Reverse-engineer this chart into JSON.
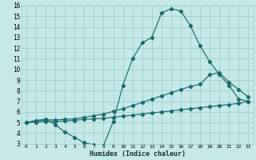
{
  "title": "",
  "xlabel": "Humidex (Indice chaleur)",
  "bg_color": "#c5e8e8",
  "grid_color": "#9fcfcf",
  "line_color": "#1a6b6b",
  "xlim": [
    -0.5,
    23.5
  ],
  "ylim": [
    3,
    16
  ],
  "xticks": [
    0,
    1,
    2,
    3,
    4,
    5,
    6,
    7,
    8,
    9,
    10,
    11,
    12,
    13,
    14,
    15,
    16,
    17,
    18,
    19,
    20,
    21,
    22,
    23
  ],
  "yticks": [
    3,
    4,
    5,
    6,
    7,
    8,
    9,
    10,
    11,
    12,
    13,
    14,
    15,
    16
  ],
  "line1_x": [
    0,
    1,
    2,
    3,
    4,
    5,
    6,
    7,
    8,
    9,
    10,
    11,
    12,
    13,
    14,
    15,
    16,
    17,
    18,
    19,
    20,
    21,
    22,
    23
  ],
  "line1_y": [
    5.0,
    5.2,
    5.3,
    4.8,
    4.1,
    3.6,
    3.1,
    2.9,
    2.85,
    5.1,
    8.5,
    11.0,
    12.5,
    13.0,
    15.3,
    15.7,
    15.5,
    14.1,
    12.2,
    10.7,
    9.5,
    8.5,
    7.2,
    7.0
  ],
  "line2_x": [
    0,
    1,
    2,
    3,
    4,
    5,
    6,
    7,
    8,
    9,
    10,
    11,
    12,
    13,
    14,
    15,
    16,
    17,
    18,
    19,
    20,
    21,
    22,
    23
  ],
  "line2_y": [
    5.0,
    5.15,
    5.25,
    5.25,
    5.3,
    5.35,
    5.5,
    5.65,
    5.8,
    6.05,
    6.3,
    6.6,
    6.9,
    7.2,
    7.5,
    7.8,
    8.1,
    8.4,
    8.6,
    9.5,
    9.7,
    8.8,
    8.1,
    7.4
  ],
  "line3_x": [
    0,
    1,
    2,
    3,
    4,
    5,
    6,
    7,
    8,
    9,
    10,
    11,
    12,
    13,
    14,
    15,
    16,
    17,
    18,
    19,
    20,
    21,
    22,
    23
  ],
  "line3_y": [
    5.0,
    5.05,
    5.1,
    5.1,
    5.15,
    5.2,
    5.3,
    5.35,
    5.4,
    5.5,
    5.6,
    5.7,
    5.8,
    5.9,
    6.0,
    6.1,
    6.2,
    6.3,
    6.4,
    6.5,
    6.6,
    6.7,
    6.8,
    7.0
  ]
}
